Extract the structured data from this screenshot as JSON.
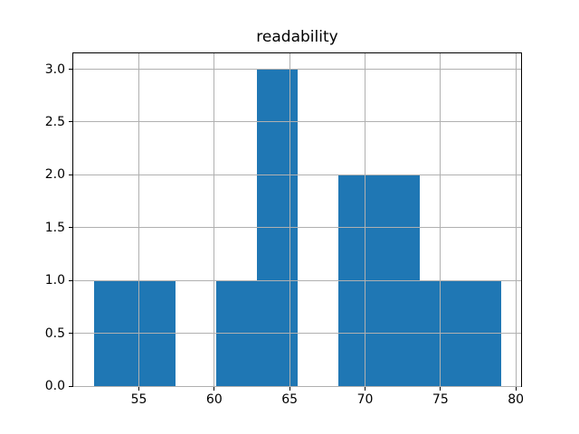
{
  "figure": {
    "background": "#ffffff"
  },
  "chart_data": {
    "type": "histogram",
    "title": "readability",
    "xlabel": "",
    "ylabel": "",
    "bin_edges": [
      52.0,
      54.7,
      57.4,
      60.1,
      62.8,
      65.5,
      68.2,
      70.9,
      73.6,
      76.3,
      79.0
    ],
    "counts": [
      1,
      1,
      0,
      1,
      3,
      0,
      2,
      2,
      1,
      1
    ],
    "xticks": [
      55,
      60,
      65,
      70,
      75,
      80
    ],
    "xtick_labels": [
      "55",
      "60",
      "65",
      "70",
      "75",
      "80"
    ],
    "yticks": [
      0.0,
      0.5,
      1.0,
      1.5,
      2.0,
      2.5,
      3.0
    ],
    "ytick_labels": [
      "0.0",
      "0.5",
      "1.0",
      "1.5",
      "2.0",
      "2.5",
      "3.0"
    ],
    "xlim": [
      50.65,
      80.35
    ],
    "ylim": [
      0,
      3.15
    ],
    "grid": true,
    "legend_position": "none",
    "bar_color": "#1f77b4",
    "grid_color": "#b0b0b0",
    "spine_color": "#000000",
    "tick_color": "#000000",
    "text_color": "#000000"
  }
}
